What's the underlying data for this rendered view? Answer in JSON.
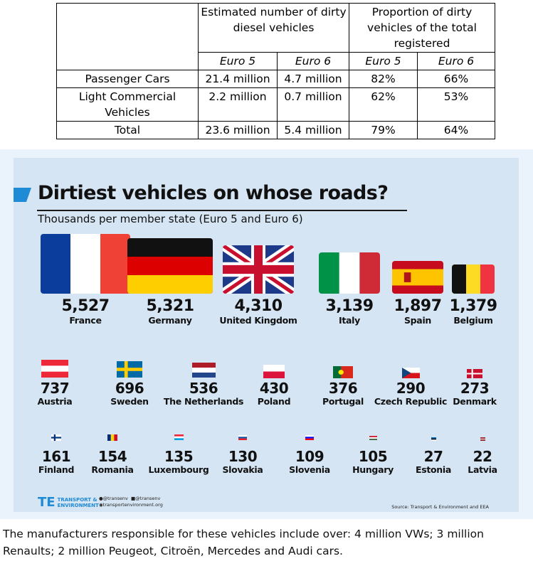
{
  "table": {
    "group1": "Estimated number of dirty diesel vehicles",
    "group2": "Proportion of dirty vehicles of the total registered",
    "euro5": "Euro 5",
    "euro6": "Euro 6",
    "rows": [
      {
        "label": "Passenger Cars",
        "n5": "21.4 million",
        "n6": "4.7 million",
        "p5": "82%",
        "p6": "66%"
      },
      {
        "label": "Light Commercial Vehicles",
        "n5": "2.2 million",
        "n6": "0.7 million",
        "p5": "62%",
        "p6": "53%"
      },
      {
        "label": "Total",
        "n5": "23.6 million",
        "n6": "5.4 million",
        "p5": "79%",
        "p6": "64%"
      }
    ]
  },
  "infographic": {
    "title": "Dirtiest vehicles on whose roads?",
    "subtitle": "Thousands per member state (Euro 5 and Euro 6)",
    "countries": [
      {
        "value": "5,527",
        "name": "France",
        "flag": "france-flag"
      },
      {
        "value": "5,321",
        "name": "Germany",
        "flag": "germany-flag"
      },
      {
        "value": "4,310",
        "name": "United Kingdom",
        "flag": "uk-flag"
      },
      {
        "value": "3,139",
        "name": "Italy",
        "flag": "italy-flag"
      },
      {
        "value": "1,897",
        "name": "Spain",
        "flag": "spain-flag"
      },
      {
        "value": "1,379",
        "name": "Belgium",
        "flag": "belgium-flag"
      },
      {
        "value": "737",
        "name": "Austria",
        "flag": "austria-flag"
      },
      {
        "value": "696",
        "name": "Sweden",
        "flag": "sweden-flag"
      },
      {
        "value": "536",
        "name": "The Netherlands",
        "flag": "netherlands-flag"
      },
      {
        "value": "430",
        "name": "Poland",
        "flag": "poland-flag"
      },
      {
        "value": "376",
        "name": "Portugal",
        "flag": "portugal-flag"
      },
      {
        "value": "290",
        "name": "Czech Republic",
        "flag": "czech-flag"
      },
      {
        "value": "273",
        "name": "Denmark",
        "flag": "denmark-flag"
      },
      {
        "value": "161",
        "name": "Finland",
        "flag": "finland-flag"
      },
      {
        "value": "154",
        "name": "Romania",
        "flag": "romania-flag"
      },
      {
        "value": "135",
        "name": "Luxembourg",
        "flag": "luxembourg-flag"
      },
      {
        "value": "130",
        "name": "Slovakia",
        "flag": "slovakia-flag"
      },
      {
        "value": "109",
        "name": "Slovenia",
        "flag": "slovenia-flag"
      },
      {
        "value": "105",
        "name": "Hungary",
        "flag": "hungary-flag"
      },
      {
        "value": "27",
        "name": "Estonia",
        "flag": "estonia-flag"
      },
      {
        "value": "22",
        "name": "Latvia",
        "flag": "latvia-flag"
      }
    ],
    "logo_mark": "TE",
    "logo_line1": "TRANSPORT &",
    "logo_line2": "ENVIRONMENT",
    "twitter": "@transenv",
    "facebook": "@transenv",
    "website": "transportenvironment.org",
    "source": "Source: Transport & Environment and EEA",
    "colors": {
      "accent": "#1f8ad6",
      "panel": "#d6e5f3",
      "background": "#eaf3fb"
    }
  },
  "footer_text": "The manufacturers responsible for these vehicles include over: 4 million VWs; 3 million Renaults; 2 million Peugeot, Citroën, Mercedes and Audi cars."
}
